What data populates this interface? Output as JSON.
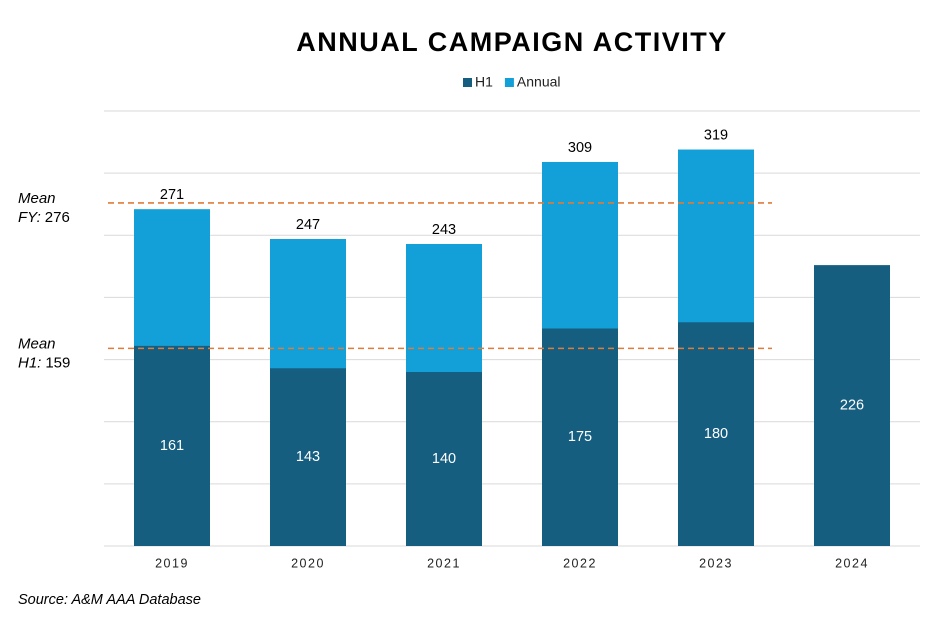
{
  "chart_data": {
    "type": "bar",
    "bar_mode": "overlay",
    "title": "ANNUAL CAMPAIGN ACTIVITY",
    "categories": [
      "2019",
      "2020",
      "2021",
      "2022",
      "2023",
      "2024"
    ],
    "series": [
      {
        "name": "H1",
        "color": "#155e80",
        "values": [
          161,
          143,
          140,
          175,
          180,
          226
        ]
      },
      {
        "name": "Annual",
        "color": "#139fd7",
        "values": [
          271,
          247,
          243,
          309,
          319,
          null
        ]
      }
    ],
    "ylim": [
      0,
      350
    ],
    "yticks": [
      0,
      50,
      100,
      150,
      200,
      250,
      300,
      350
    ],
    "ytick_labels_shown": false,
    "grid": true,
    "legend": "top",
    "reference_lines": [
      {
        "line1": "Mean",
        "line2": "FY:",
        "value": 276,
        "color": "#e07b39"
      },
      {
        "line1": "Mean",
        "line2": "H1:",
        "value": 159,
        "color": "#e07b39"
      }
    ],
    "source": "Source: A&M AAA Database"
  }
}
